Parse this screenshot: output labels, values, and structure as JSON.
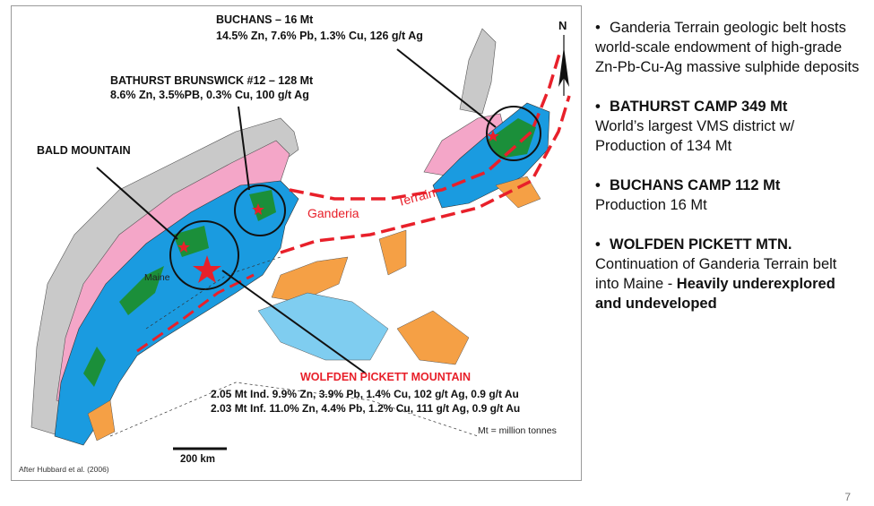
{
  "map": {
    "labels": {
      "buchans_title": "BUCHANS – 16 Mt",
      "buchans_grades": "14.5% Zn, 7.6% Pb, 1.3% Cu, 126 g/t Ag",
      "bathurst_title": "BATHURST BRUNSWICK #12 – 128 Mt",
      "bathurst_grades": "8.6% Zn, 3.5%PB, 0.3% Cu, 100 g/t Ag",
      "bald_mountain": "BALD MOUNTAIN",
      "maine": "Maine",
      "ganderia": "Ganderia",
      "terrain": "Terrain",
      "wolfden_title": "WOLFDEN PICKETT MOUNTAIN",
      "wolfden_ind": "2.05 Mt Ind.  9.9% Zn, 3.9% Pb, 1.4% Cu, 102 g/t Ag, 0.9 g/t Au",
      "wolfden_inf": "2.03 Mt Inf.  11.0% Zn, 4.4% Pb, 1.2% Cu, 111 g/t Ag, 0.9 g/t Au",
      "units_note": "Mt = million tonnes",
      "scale": "200 km",
      "credit": "After Hubbard et al. (2006)",
      "north": "N"
    },
    "colors": {
      "grey_belt": "#c9c9c9",
      "pink_belt": "#f4a6c8",
      "blue_belt": "#1a9be0",
      "green_zones": "#1b8f3a",
      "orange_zones": "#f5a045",
      "light_blue": "#7fcdf0",
      "terrain_line": "#e8202a"
    },
    "icons": [
      "north-arrow-icon",
      "red-star-icon"
    ]
  },
  "bullets": [
    {
      "lead": "",
      "text": "Ganderia Terrain geologic belt hosts world-scale endowment of high-grade Zn-Pb-Cu-Ag massive sulphide deposits",
      "bold_tail": ""
    },
    {
      "lead": "BATHURST CAMP 349 Mt",
      "text": "World’s largest VMS district w/ Production of 134 Mt",
      "bold_tail": ""
    },
    {
      "lead": "BUCHANS CAMP 112 Mt",
      "text": "Production 16 Mt",
      "bold_tail": ""
    },
    {
      "lead": "WOLFDEN PICKETT MTN.",
      "text": "Continuation of Ganderia Terrain belt into Maine - ",
      "bold_tail": "Heavily underexplored and undeveloped"
    }
  ],
  "page_number": "7"
}
